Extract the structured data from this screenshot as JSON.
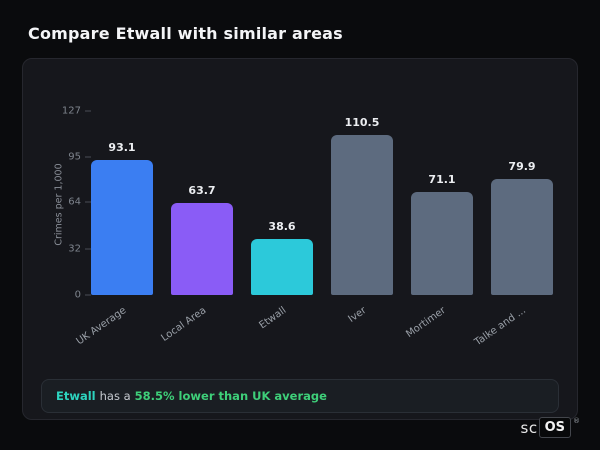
{
  "page": {
    "title": "Compare Etwall with similar areas"
  },
  "chart_data": {
    "type": "bar",
    "title": "",
    "ylabel": "Crimes per 1,000",
    "xlabel": "",
    "categories": [
      "UK Average",
      "Local Area",
      "Etwall",
      "Iver",
      "Mortimer",
      "Talke and ..."
    ],
    "values": [
      93.1,
      63.7,
      38.6,
      110.5,
      71.1,
      79.9
    ],
    "value_labels": [
      "93.1",
      "63.7",
      "38.6",
      "110.5",
      "71.1",
      "79.9"
    ],
    "bar_colors": [
      "#3b7ef2",
      "#8a5cf6",
      "#2cc9da",
      "#5d6b7f",
      "#5d6b7f",
      "#5d6b7f"
    ],
    "yticks": [
      0,
      32,
      64,
      95,
      127
    ],
    "ylim": [
      0,
      127
    ],
    "grid": false,
    "legend": "none"
  },
  "footer": {
    "area": "Etwall",
    "middle": "has a",
    "highlight": "58.5% lower than UK average"
  },
  "logo": {
    "prefix": "sc",
    "suffix": "OS",
    "reg": "®"
  }
}
